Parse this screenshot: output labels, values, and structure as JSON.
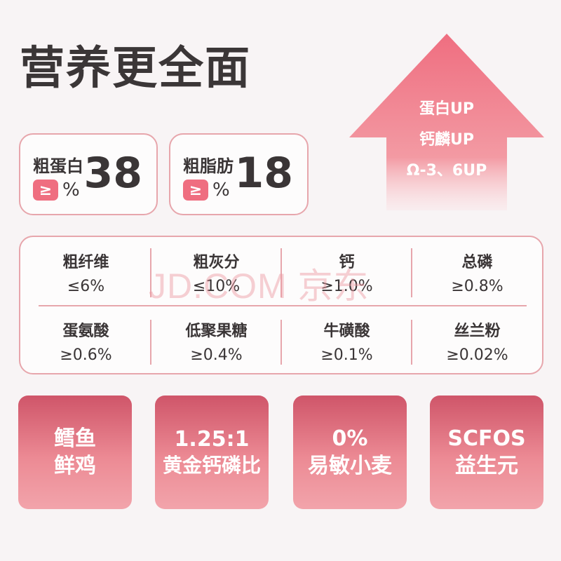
{
  "title": "营养更全面",
  "stats": [
    {
      "label": "粗蛋白",
      "badge": "≥",
      "unit": "%",
      "value": "38"
    },
    {
      "label": "粗脂肪",
      "badge": "≥",
      "unit": "%",
      "value": "18"
    }
  ],
  "arrow": {
    "lines": [
      "蛋白UP",
      "钙麟UP",
      "Ω-3、6UP"
    ],
    "colors": {
      "top": "#ef6e80",
      "bottom": "#fbe3e6"
    }
  },
  "nutrients": [
    {
      "name": "粗纤维",
      "value": "≤6%"
    },
    {
      "name": "粗灰分",
      "value": "≤10%"
    },
    {
      "name": "钙",
      "value": "≥1.0%"
    },
    {
      "name": "总磷",
      "value": "≥0.8%"
    },
    {
      "name": "蛋氨酸",
      "value": "≥0.6%"
    },
    {
      "name": "低聚果糖",
      "value": "≥0.4%"
    },
    {
      "name": "牛磺酸",
      "value": "≥0.1%"
    },
    {
      "name": "丝兰粉",
      "value": "≥0.02%"
    }
  ],
  "watermark": "JD.COM 京东",
  "features": [
    {
      "line1": "鳕鱼",
      "line2": "鲜鸡"
    },
    {
      "line1": "1.25:1",
      "line2": "黄金钙磷比"
    },
    {
      "line1": "0%",
      "line2": "易敏小麦"
    },
    {
      "line1": "SCFOS",
      "line2": "益生元"
    }
  ],
  "accent": "#ef6e80",
  "border": "#e7a6ac"
}
